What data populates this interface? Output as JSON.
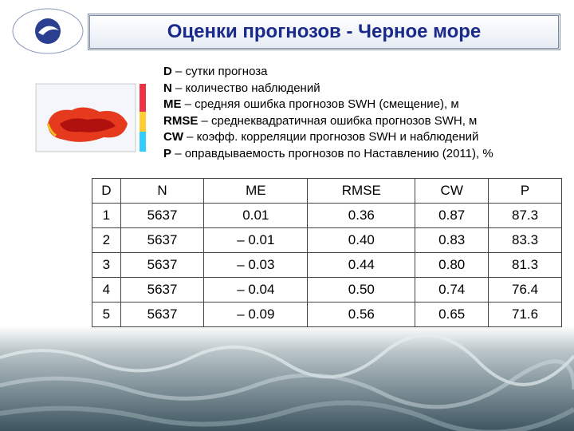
{
  "header": {
    "title": "Оценки прогнозов - Черное море"
  },
  "legend": [
    {
      "abbr": "D",
      "text": "– сутки прогноза"
    },
    {
      "abbr": "N",
      "text": "– количество наблюдений"
    },
    {
      "abbr": "ME",
      "text": "– средняя ошибка прогнозов SWH (смещение), м"
    },
    {
      "abbr": "RMSE",
      "text": "– среднеквадратичная ошибка прогнозов SWH, м"
    },
    {
      "abbr": "CW",
      "text": "– коэфф. корреляции прогнозов SWH и наблюдений"
    },
    {
      "abbr": "P",
      "text": "–  оправдываемость прогнозов по Наставлению (2011), %"
    }
  ],
  "table": {
    "columns": [
      "D",
      "N",
      "ME",
      "RMSE",
      "CW",
      "P"
    ],
    "rows": [
      [
        "1",
        "5637",
        "0.01",
        "0.36",
        "0.87",
        "87.3"
      ],
      [
        "2",
        "5637",
        "– 0.01",
        "0.40",
        "0.83",
        "83.3"
      ],
      [
        "3",
        "5637",
        "– 0.03",
        "0.44",
        "0.80",
        "81.3"
      ],
      [
        "4",
        "5637",
        "– 0.04",
        "0.50",
        "0.74",
        "76.4"
      ],
      [
        "5",
        "5637",
        "– 0.09",
        "0.56",
        "0.65",
        "71.6"
      ]
    ]
  }
}
